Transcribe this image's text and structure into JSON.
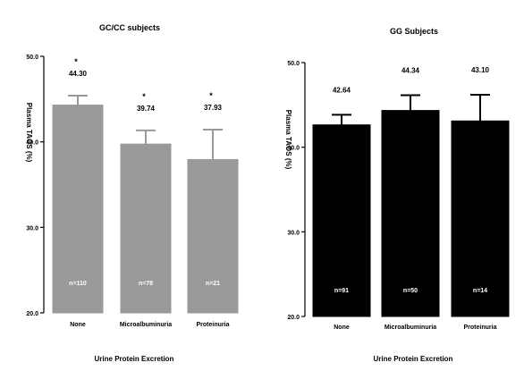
{
  "chart_data": [
    {
      "type": "bar",
      "title": "GC/CC subjects",
      "xlabel": "Urine Protein Excretion",
      "ylabel": "Plasma TAOS (%)",
      "ylim": [
        20,
        50
      ],
      "yticks": [
        "20.0",
        "30.0",
        "40.0",
        "50.0"
      ],
      "categories": [
        "None",
        "Microalbuminuria",
        "Proteinuria"
      ],
      "values": [
        44.3,
        39.74,
        37.93
      ],
      "error": [
        1.1,
        1.6,
        3.5
      ],
      "value_labels": [
        "44.30",
        "39.74",
        "37.93"
      ],
      "n_labels": [
        "n=110",
        "n=78",
        "n=21"
      ],
      "markers": [
        "*",
        "*",
        "*"
      ],
      "bar_color": "#999999",
      "grid": false,
      "legend": false
    },
    {
      "type": "bar",
      "title": "GG Subjects",
      "xlabel": "Urine Protein Excretion",
      "ylabel": "Plasma TAOS (%)",
      "ylim": [
        20,
        50
      ],
      "yticks": [
        "20.0",
        "30.0",
        "40.0",
        "50.0"
      ],
      "categories": [
        "None",
        "Microalbuminuria",
        "Proteinuria"
      ],
      "values": [
        42.64,
        44.34,
        43.1
      ],
      "error": [
        1.2,
        1.8,
        3.1
      ],
      "value_labels": [
        "42.64",
        "44.34",
        "43.10"
      ],
      "n_labels": [
        "n=91",
        "n=50",
        "n=14"
      ],
      "bar_color": "#000000",
      "grid": false,
      "legend": false
    }
  ]
}
